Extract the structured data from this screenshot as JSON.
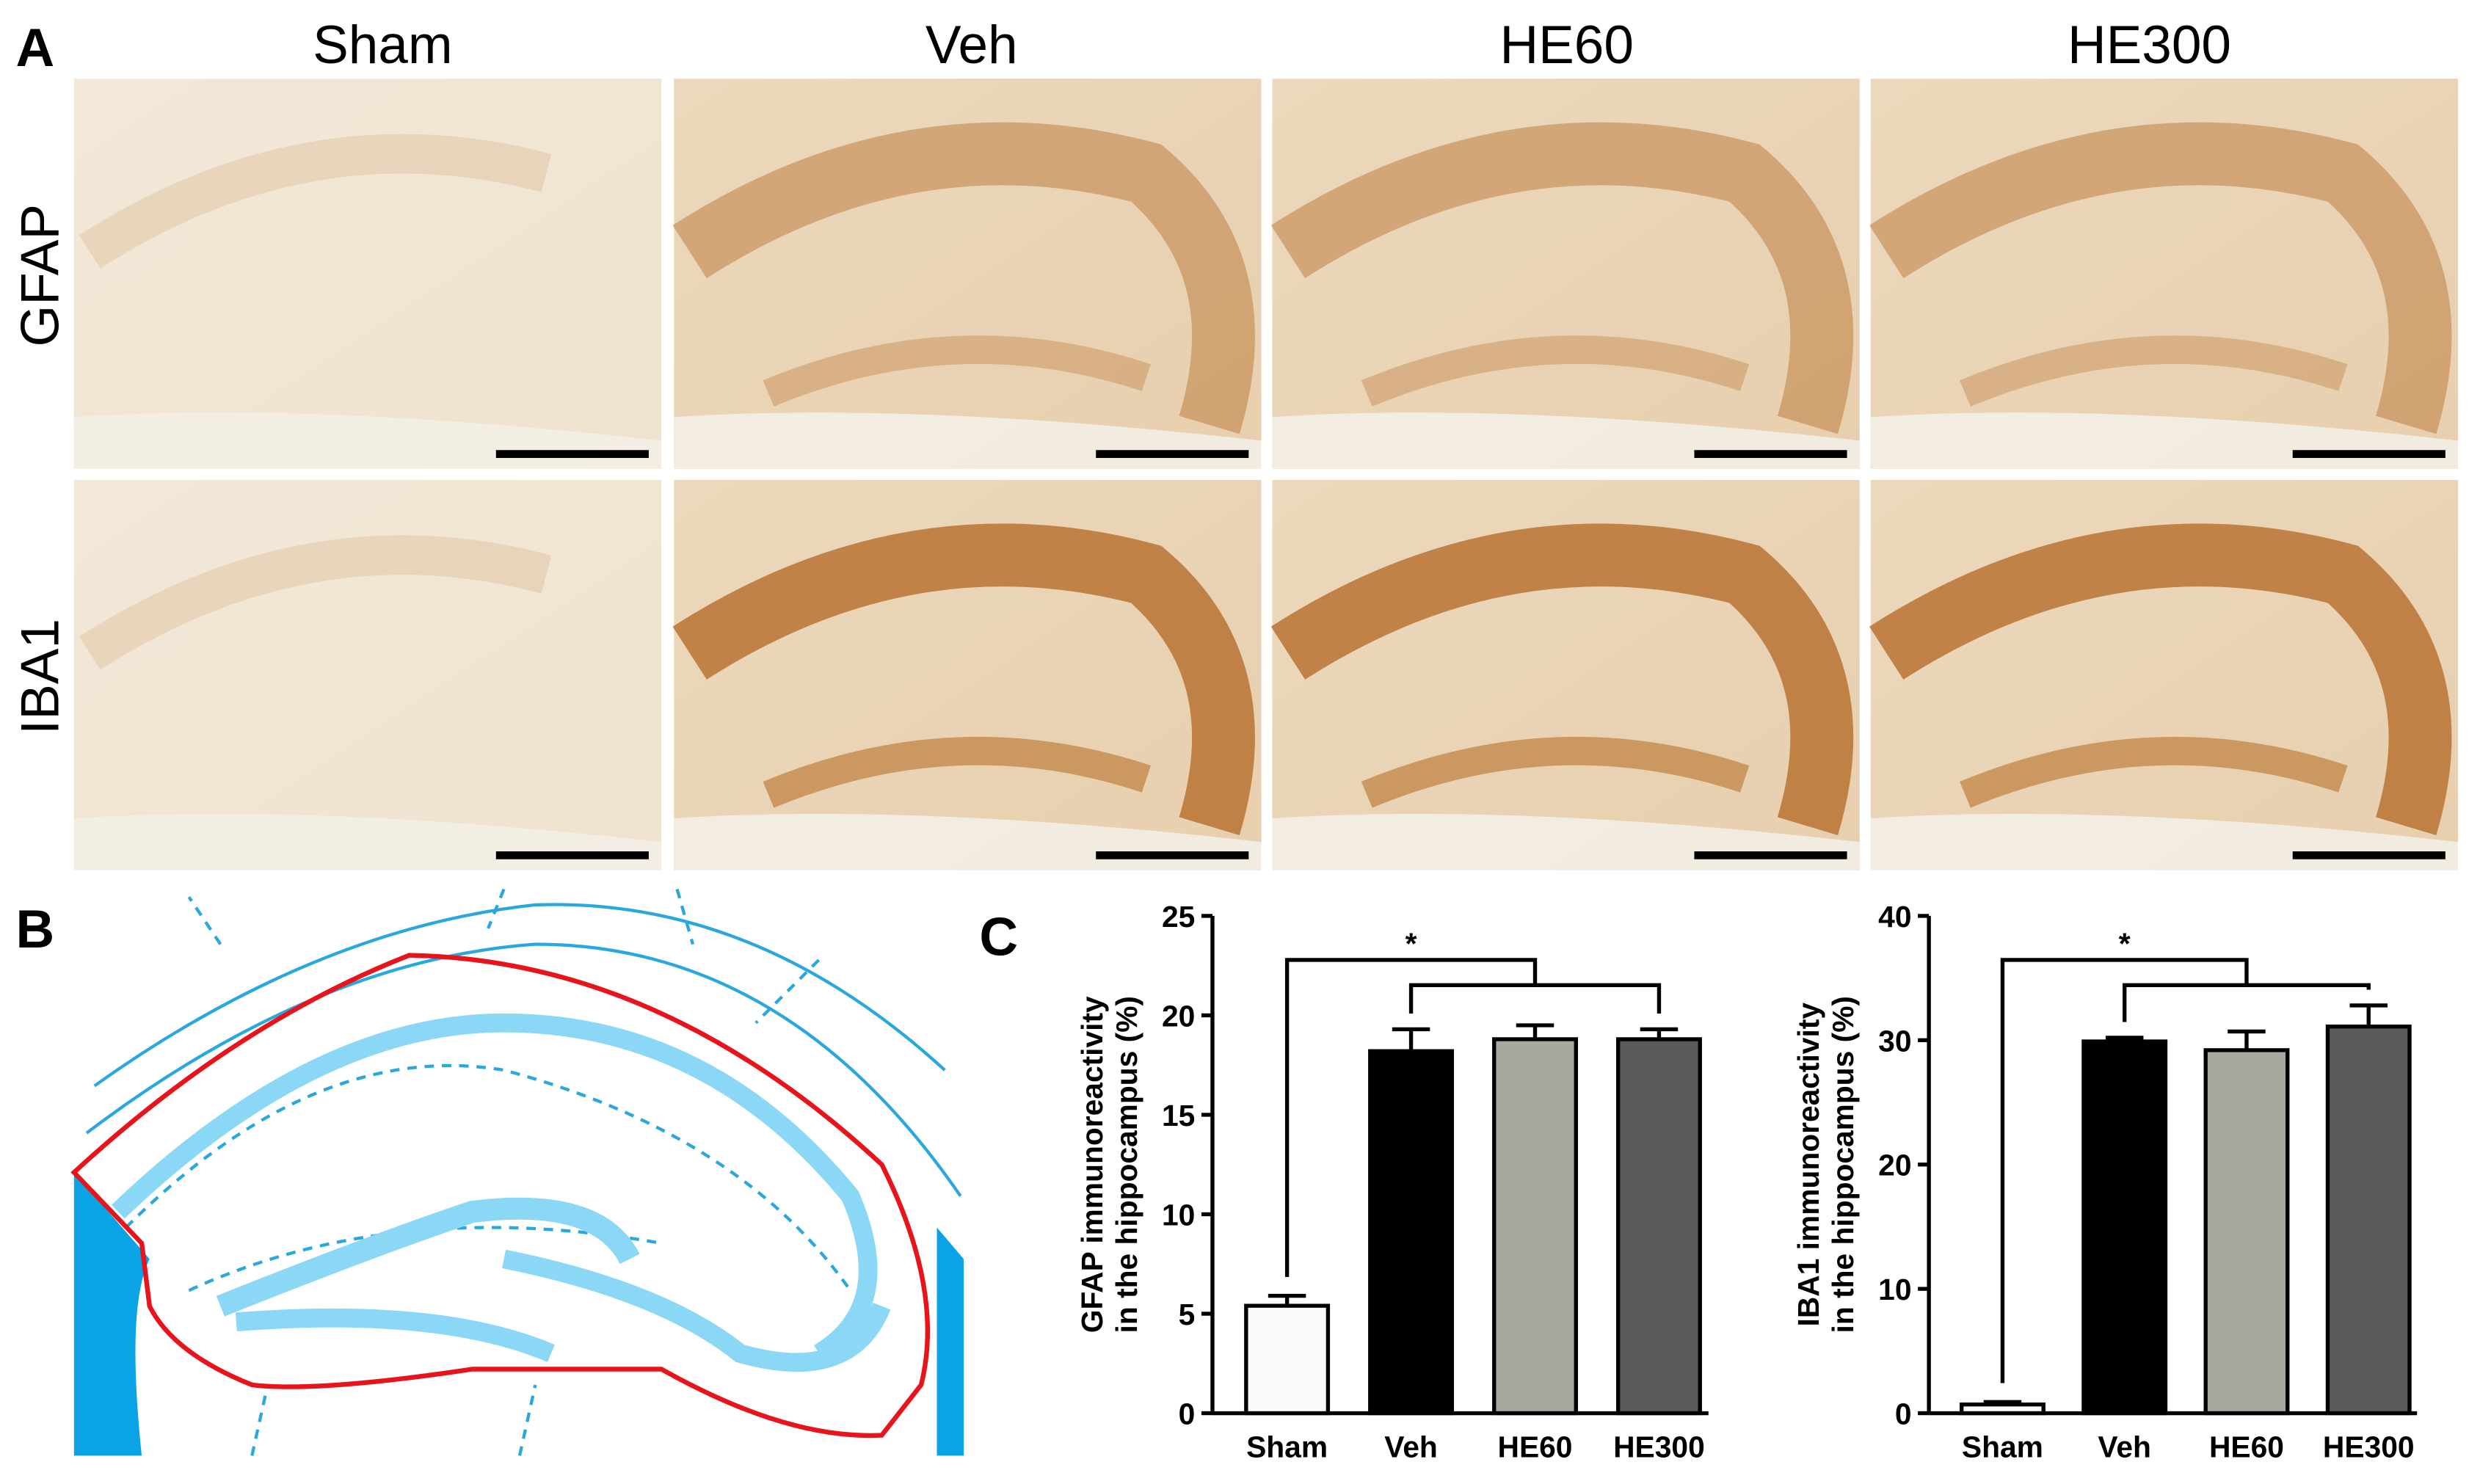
{
  "panel_labels": [
    "A",
    "B",
    "C"
  ],
  "columns": [
    "Sham",
    "Veh",
    "HE60",
    "HE300"
  ],
  "rows": [
    "GFAP",
    "IBA1"
  ],
  "chart_data": [
    {
      "type": "bar",
      "categories": [
        "Sham",
        "Veh",
        "HE60",
        "HE300"
      ],
      "values": [
        5.4,
        18.2,
        18.8,
        18.8
      ],
      "errors": [
        0.5,
        1.1,
        0.7,
        0.5
      ],
      "colors": [
        "#fafafa",
        "#000000",
        "#a8a8a0",
        "#5a5a5a"
      ],
      "ylim": [
        0,
        25
      ],
      "yticks": [
        0,
        5,
        10,
        15,
        20,
        25
      ],
      "y_label": [
        "GFAP immunoreactivity",
        "in the hippocampus (%)"
      ],
      "annotation": "*"
    },
    {
      "type": "bar",
      "categories": [
        "Sham",
        "Veh",
        "HE60",
        "HE300"
      ],
      "values": [
        0.7,
        29.9,
        29.2,
        31.1
      ],
      "errors": [
        0.2,
        0.3,
        1.5,
        1.7
      ],
      "colors": [
        "#fafafa",
        "#000000",
        "#a8a8a0",
        "#5a5a5a"
      ],
      "ylim": [
        0,
        40
      ],
      "yticks": [
        0,
        10,
        20,
        30,
        40
      ],
      "y_label": [
        "IBA1 immunoreactivity",
        "in the hippocampus (%)"
      ],
      "annotation": "*"
    }
  ]
}
